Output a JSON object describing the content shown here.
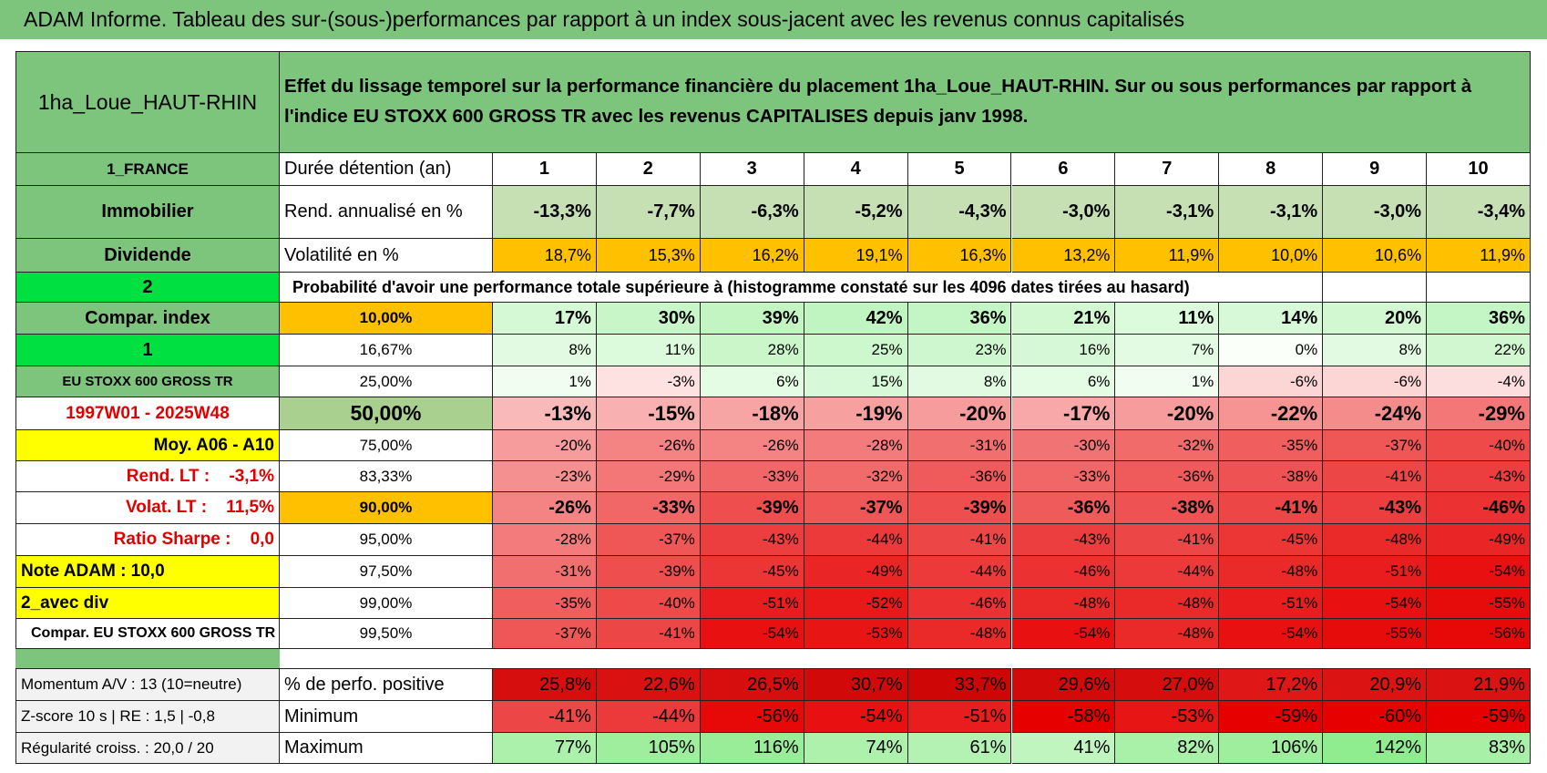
{
  "header": {
    "title": "ADAM Informe. Tableau des sur-(sous-)performances par rapport à un index sous-jacent avec les revenus connus capitalisés"
  },
  "table": {
    "asset": "1ha_Loue_HAUT-RHIN",
    "description": "Effet du lissage temporel sur la performance financière du placement 1ha_Loue_HAUT-RHIN. Sur ou sous performances par rapport à l'indice EU STOXX 600 GROSS TR avec les revenus CAPITALISES depuis janv 1998.",
    "rows": [
      {
        "side": "1_FRANCE",
        "label": "Durée détention (an)",
        "cells": [
          "1",
          "2",
          "3",
          "4",
          "5",
          "6",
          "7",
          "8",
          "9",
          "10"
        ]
      },
      {
        "side": "Immobilier",
        "label": "Rend. annualisé en %",
        "cells": [
          "-13,3%",
          "-7,7%",
          "-6,3%",
          "-5,2%",
          "-4,3%",
          "-3,0%",
          "-3,1%",
          "-3,1%",
          "-3,0%",
          "-3,4%"
        ]
      },
      {
        "side": "Dividende",
        "label": "Volatilité en %",
        "cells": [
          "18,7%",
          "15,3%",
          "16,2%",
          "19,1%",
          "16,3%",
          "13,2%",
          "11,9%",
          "10,0%",
          "10,6%",
          "11,9%"
        ]
      },
      {
        "side": "2",
        "label": "Probabilité d'avoir une performance totale supérieure à (histogramme constaté sur les 4096 dates tirées au hasard)"
      },
      {
        "side": "Compar. index",
        "label": "10,00%",
        "cells": [
          "17%",
          "30%",
          "39%",
          "42%",
          "36%",
          "21%",
          "11%",
          "14%",
          "20%",
          "36%"
        ]
      },
      {
        "side": "1",
        "label": "16,67%",
        "cells": [
          "8%",
          "11%",
          "28%",
          "25%",
          "23%",
          "16%",
          "7%",
          "0%",
          "8%",
          "22%"
        ]
      },
      {
        "side": "EU STOXX 600 GROSS TR",
        "label": "25,00%",
        "cells": [
          "1%",
          "-3%",
          "6%",
          "15%",
          "8%",
          "6%",
          "1%",
          "-6%",
          "-6%",
          "-4%"
        ]
      },
      {
        "side": "1997W01 - 2025W48",
        "label": "50,00%",
        "cells": [
          "-13%",
          "-15%",
          "-18%",
          "-19%",
          "-20%",
          "-17%",
          "-20%",
          "-22%",
          "-24%",
          "-29%"
        ]
      },
      {
        "side": "Moy. A06 - A10",
        "label": "75,00%",
        "cells": [
          "-20%",
          "-26%",
          "-26%",
          "-28%",
          "-31%",
          "-30%",
          "-32%",
          "-35%",
          "-37%",
          "-40%"
        ]
      },
      {
        "side": "Rend. LT :    -3,1%",
        "label": "83,33%",
        "cells": [
          "-23%",
          "-29%",
          "-33%",
          "-32%",
          "-36%",
          "-33%",
          "-36%",
          "-38%",
          "-41%",
          "-43%"
        ]
      },
      {
        "side": "Volat. LT :    11,5%",
        "label": "90,00%",
        "cells": [
          "-26%",
          "-33%",
          "-39%",
          "-37%",
          "-39%",
          "-36%",
          "-38%",
          "-41%",
          "-43%",
          "-46%"
        ]
      },
      {
        "side": "Ratio Sharpe :    0,0",
        "label": "95,00%",
        "cells": [
          "-28%",
          "-37%",
          "-43%",
          "-44%",
          "-41%",
          "-43%",
          "-41%",
          "-45%",
          "-48%",
          "-49%"
        ]
      },
      {
        "side": "Note ADAM : 10,0",
        "label": "97,50%",
        "cells": [
          "-31%",
          "-39%",
          "-45%",
          "-49%",
          "-44%",
          "-46%",
          "-44%",
          "-48%",
          "-51%",
          "-54%"
        ]
      },
      {
        "side": "2_avec div",
        "label": "99,00%",
        "cells": [
          "-35%",
          "-40%",
          "-51%",
          "-52%",
          "-46%",
          "-48%",
          "-48%",
          "-51%",
          "-54%",
          "-55%"
        ]
      },
      {
        "side": "Compar. EU STOXX 600 GROSS TR",
        "label": "99,50%",
        "cells": [
          "-37%",
          "-41%",
          "-54%",
          "-53%",
          "-48%",
          "-54%",
          "-48%",
          "-54%",
          "-55%",
          "-56%"
        ]
      }
    ],
    "stats": [
      {
        "side": "Momentum A/V : 13 (10=neutre)",
        "label": "% de perfo. positive",
        "cells": [
          "25,8%",
          "22,6%",
          "26,5%",
          "30,7%",
          "33,7%",
          "29,6%",
          "27,0%",
          "17,2%",
          "20,9%",
          "21,9%"
        ]
      },
      {
        "side": "Z-score 10 s | RE : 1,5 | -0,8",
        "label": "Minimum",
        "cells": [
          "-41%",
          "-44%",
          "-56%",
          "-54%",
          "-51%",
          "-58%",
          "-53%",
          "-59%",
          "-60%",
          "-59%"
        ]
      },
      {
        "side": "Régularité croiss. : 20,0 / 20",
        "label": "Maximum",
        "cells": [
          "77%",
          "105%",
          "116%",
          "74%",
          "61%",
          "41%",
          "82%",
          "106%",
          "142%",
          "83%"
        ]
      }
    ]
  }
}
